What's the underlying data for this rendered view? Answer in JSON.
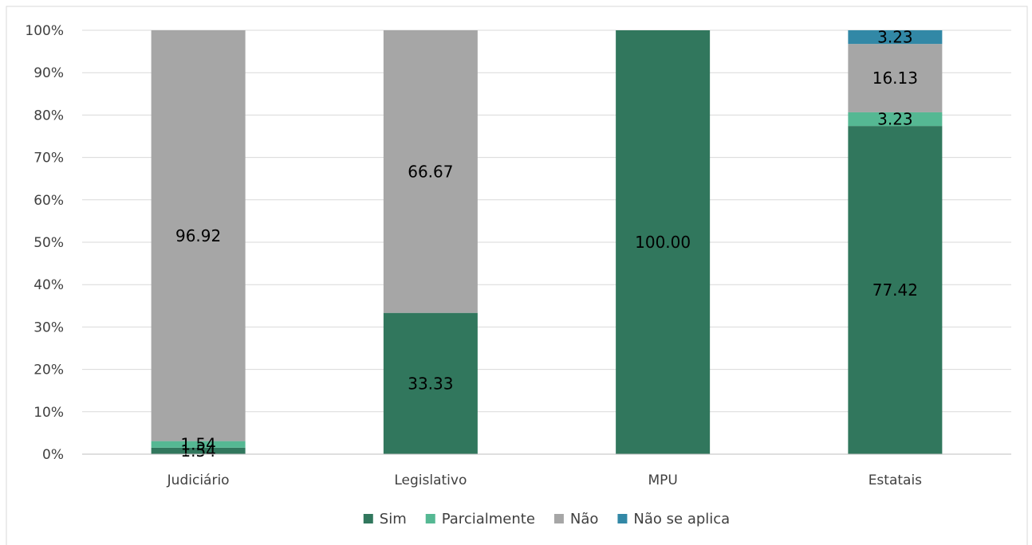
{
  "chart_data": {
    "type": "bar",
    "stacked": true,
    "percent_stacked": true,
    "categories": [
      "Judiciário",
      "Legislativo",
      "MPU",
      "Estatais"
    ],
    "series": [
      {
        "name": "Sim",
        "color": "#31775d",
        "values": [
          1.54,
          33.33,
          100.0,
          77.42
        ],
        "labels": [
          "1.54",
          "33.33",
          "100.00",
          "77.42"
        ]
      },
      {
        "name": "Parcialmente",
        "color": "#55b893",
        "values": [
          1.54,
          0,
          0,
          3.23
        ],
        "labels": [
          "1.54",
          "",
          "",
          "3.23"
        ]
      },
      {
        "name": "Não",
        "color": "#a6a6a6",
        "values": [
          96.92,
          66.67,
          0,
          16.13
        ],
        "labels": [
          "96.92",
          "66.67",
          "",
          "16.13"
        ]
      },
      {
        "name": "Não se aplica",
        "color": "#3288a6",
        "values": [
          0,
          0,
          0,
          3.23
        ],
        "labels": [
          "",
          "",
          "",
          "3.23"
        ]
      }
    ],
    "yticks": [
      "0%",
      "10%",
      "20%",
      "30%",
      "40%",
      "50%",
      "60%",
      "70%",
      "80%",
      "90%",
      "100%"
    ],
    "ylim": [
      0,
      100
    ],
    "title": "",
    "xlabel": "",
    "ylabel": "",
    "grid": true,
    "legend_position": "bottom",
    "gridline_color": "#d9d9d9",
    "axis_color": "#bfbfbf",
    "text_color": "#404040"
  }
}
